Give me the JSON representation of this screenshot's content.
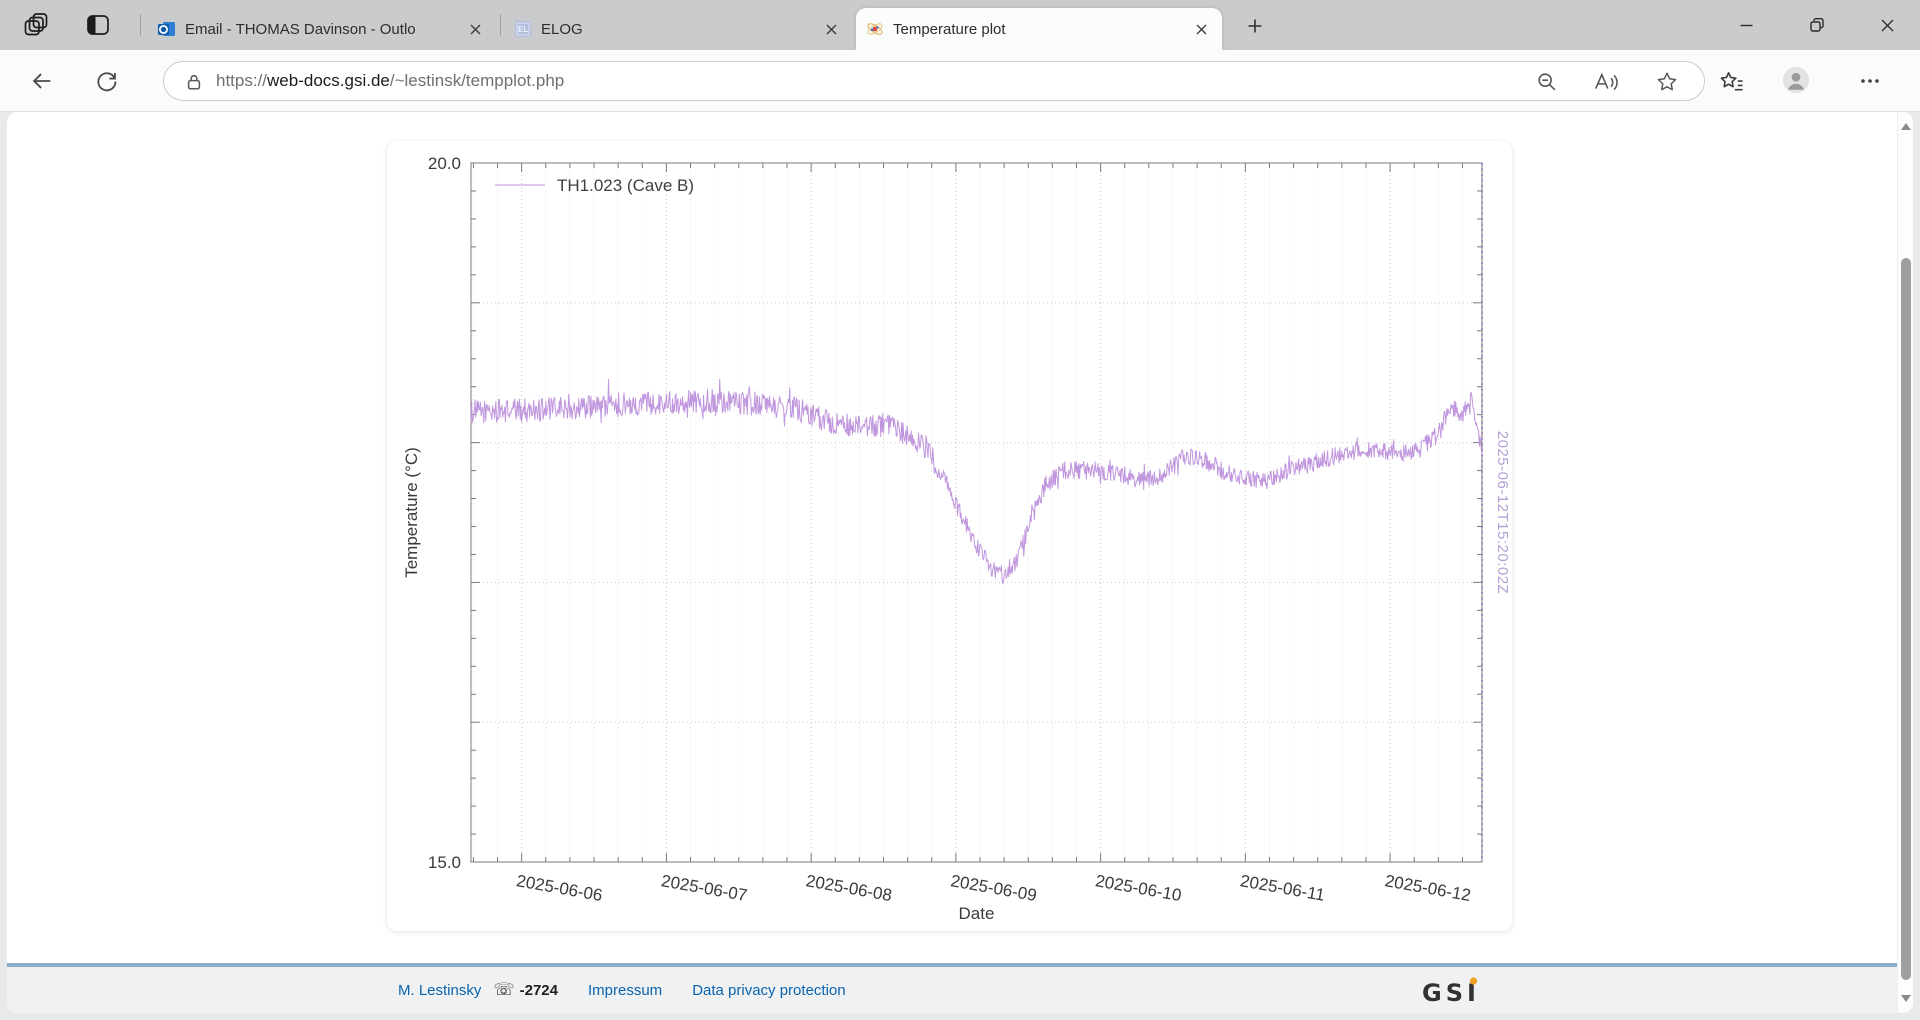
{
  "browser": {
    "tabs": [
      {
        "title": "Email - THOMAS Davinson - Outlo",
        "favicon": "outlook"
      },
      {
        "title": "ELOG",
        "favicon": "elog"
      },
      {
        "title": "Temperature plot",
        "favicon": "gsi-atom"
      }
    ],
    "url": {
      "scheme": "https://",
      "host": "web-docs.gsi.de",
      "path": "/~lestinsk/tempplot.php"
    }
  },
  "page": {
    "footer": {
      "author": "M. Lestinsky",
      "phone_icon_char": "☏",
      "phone": "-2724",
      "links": [
        "Impressum",
        "Data privacy protection"
      ],
      "logo_text": "GSI",
      "accent_border": "#8badcb",
      "link_color": "#0b63ad"
    }
  },
  "chart_data": {
    "type": "line",
    "title": "",
    "x_axis": {
      "label": "Date",
      "unit": "days since 2025-06-05 00:00",
      "range_days": [
        0.65,
        7.635
      ],
      "ticks": [
        {
          "day": 1,
          "label": "2025-06-06"
        },
        {
          "day": 2,
          "label": "2025-06-07"
        },
        {
          "day": 3,
          "label": "2025-06-08"
        },
        {
          "day": 4,
          "label": "2025-06-09"
        },
        {
          "day": 5,
          "label": "2025-06-10"
        },
        {
          "day": 6,
          "label": "2025-06-11"
        },
        {
          "day": 7,
          "label": "2025-06-12"
        }
      ],
      "minor_tick_hours": 4,
      "tick_label_rotation_deg": 10
    },
    "y_axis": {
      "label": "Temperature (°C)",
      "min": 15.0,
      "max": 20.0,
      "major_step": 1.0,
      "minor_step": 0.2,
      "tick_labels": [
        {
          "value": 20.0,
          "label": "20.0"
        },
        {
          "value": 15.0,
          "label": "15.0"
        }
      ]
    },
    "grid": {
      "horizontal_major": true,
      "vertical_major": true,
      "vertical_minor": true,
      "style": "dotted"
    },
    "legend": {
      "position": "top-left-inside"
    },
    "series": [
      {
        "name": "TH1.023 (Cave B)",
        "color": "#bd90dc",
        "noise_amplitude": 0.065,
        "n_points": 1500,
        "trend_points": [
          [
            0.65,
            18.22
          ],
          [
            1.2,
            18.24
          ],
          [
            1.8,
            18.28
          ],
          [
            2.3,
            18.3
          ],
          [
            2.6,
            18.28
          ],
          [
            2.9,
            18.24
          ],
          [
            3.1,
            18.16
          ],
          [
            3.35,
            18.1
          ],
          [
            3.5,
            18.13
          ],
          [
            3.65,
            18.06
          ],
          [
            3.8,
            17.96
          ],
          [
            3.95,
            17.68
          ],
          [
            4.05,
            17.45
          ],
          [
            4.15,
            17.25
          ],
          [
            4.25,
            17.1
          ],
          [
            4.33,
            17.05
          ],
          [
            4.42,
            17.16
          ],
          [
            4.52,
            17.45
          ],
          [
            4.62,
            17.7
          ],
          [
            4.75,
            17.8
          ],
          [
            4.95,
            17.8
          ],
          [
            5.15,
            17.77
          ],
          [
            5.3,
            17.72
          ],
          [
            5.45,
            17.78
          ],
          [
            5.58,
            17.9
          ],
          [
            5.7,
            17.88
          ],
          [
            5.85,
            17.8
          ],
          [
            6.0,
            17.74
          ],
          [
            6.15,
            17.72
          ],
          [
            6.3,
            17.8
          ],
          [
            6.45,
            17.85
          ],
          [
            6.6,
            17.9
          ],
          [
            6.75,
            17.94
          ],
          [
            6.9,
            17.95
          ],
          [
            7.05,
            17.92
          ],
          [
            7.2,
            17.95
          ],
          [
            7.32,
            18.05
          ],
          [
            7.42,
            18.26
          ],
          [
            7.5,
            18.2
          ],
          [
            7.56,
            18.3
          ],
          [
            7.6,
            18.1
          ],
          [
            7.635,
            17.95
          ]
        ]
      }
    ],
    "now_line": {
      "day": 7.635,
      "label": "2025-06-12T15:20:02Z",
      "line_color": "#8766b5",
      "label_color": "#b39fd4"
    }
  }
}
